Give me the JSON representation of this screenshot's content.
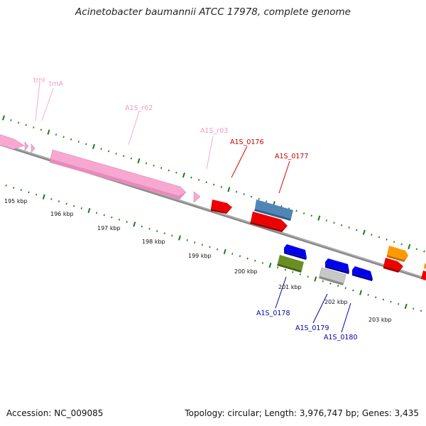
{
  "title": "Acinetobacter baumannii ATCC 17978, complete genome",
  "footer": {
    "accession": "Accession: NC_009085",
    "summary": "Topology: circular; Length: 3,976,747 bp; Genes: 3,435"
  },
  "colors": {
    "rna": "#f8a8d0",
    "rna_label": "#f09ac4",
    "cds_forward_red": "#ee0000",
    "cds_reverse_blue": "#0000ee",
    "steel_blue": "#4f86b8",
    "olive": "#6b8e23",
    "grey": "#c8c8c8",
    "orange": "#ff9900",
    "label_red": "#cc0000",
    "label_blue": "#0000aa",
    "tick_green": "#1a7a1a"
  },
  "scale_labels": [
    "195 kbp",
    "196 kbp",
    "197 kbp",
    "198 kbp",
    "199 kbp",
    "200 kbp",
    "201 kbp",
    "202 kbp",
    "203 kbp"
  ],
  "feature_labels": {
    "trnI": "trnI",
    "trnA": "trnA",
    "r02": "A1S_r02",
    "r03": "A1S_r03",
    "g0176": "A1S_0176",
    "g0177": "A1S_0177",
    "g0178": "A1S_0178",
    "g0179": "A1S_0179",
    "g0180": "A1S_0180"
  }
}
